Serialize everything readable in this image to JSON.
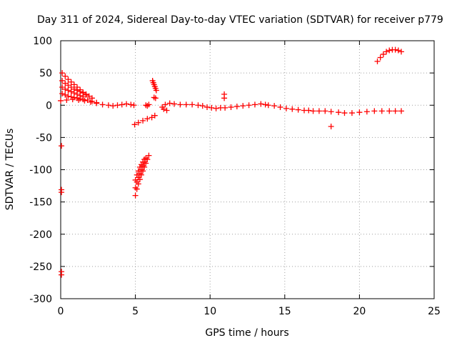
{
  "chart_data": {
    "type": "scatter",
    "title": "Day 311 of 2024, Sidereal Day-to-day VTEC variation (SDTVAR) for receiver p779",
    "xlabel": "GPS time / hours",
    "ylabel": "SDTVAR / TECUs",
    "xlim": [
      0,
      25
    ],
    "ylim": [
      -300,
      100
    ],
    "x_ticks": [
      0,
      5,
      10,
      15,
      20,
      25
    ],
    "y_ticks": [
      100,
      50,
      0,
      -50,
      -100,
      -150,
      -200,
      -250,
      -300
    ],
    "grid": true,
    "marker": "+",
    "color": "#ff0000",
    "series": [
      {
        "name": "top-cluster-upper",
        "points": [
          [
            0.1,
            50
          ],
          [
            0.3,
            45
          ],
          [
            0.5,
            40
          ],
          [
            0.7,
            36
          ],
          [
            0.9,
            32
          ],
          [
            1.1,
            28
          ],
          [
            1.3,
            24
          ],
          [
            1.5,
            20
          ],
          [
            1.7,
            17
          ],
          [
            1.9,
            14
          ],
          [
            2.1,
            11
          ]
        ]
      },
      {
        "name": "top-cluster-mid",
        "points": [
          [
            0.1,
            38
          ],
          [
            0.3,
            34
          ],
          [
            0.5,
            31
          ],
          [
            0.7,
            28
          ],
          [
            0.9,
            25
          ],
          [
            1.1,
            23
          ],
          [
            1.3,
            21
          ],
          [
            1.5,
            19
          ],
          [
            1.7,
            16
          ]
        ]
      },
      {
        "name": "top-cluster-low",
        "points": [
          [
            0.1,
            28
          ],
          [
            0.3,
            25
          ],
          [
            0.5,
            23
          ],
          [
            0.7,
            21
          ],
          [
            0.9,
            19
          ],
          [
            1.1,
            17
          ],
          [
            1.3,
            15
          ],
          [
            1.5,
            13
          ]
        ]
      },
      {
        "name": "top-cluster-base",
        "points": [
          [
            0.1,
            18
          ],
          [
            0.3,
            16
          ],
          [
            0.5,
            14
          ],
          [
            0.7,
            13
          ],
          [
            0.9,
            12
          ],
          [
            1.1,
            11
          ],
          [
            1.3,
            10
          ],
          [
            1.5,
            9
          ],
          [
            1.8,
            8
          ],
          [
            2.1,
            6
          ],
          [
            2.4,
            4
          ]
        ]
      },
      {
        "name": "trend-0-to-5",
        "points": [
          [
            0,
            7
          ],
          [
            0.4,
            8
          ],
          [
            0.8,
            9
          ],
          [
            1.2,
            8
          ],
          [
            1.6,
            7
          ],
          [
            2.0,
            5
          ],
          [
            2.4,
            3
          ],
          [
            2.8,
            1
          ],
          [
            3.2,
            0
          ],
          [
            3.5,
            -1
          ],
          [
            3.8,
            0
          ],
          [
            4.1,
            1
          ],
          [
            4.4,
            2
          ],
          [
            4.7,
            1
          ],
          [
            4.9,
            0
          ]
        ]
      },
      {
        "name": "rising-band-5h",
        "points": [
          [
            4.95,
            -30
          ],
          [
            5.2,
            -27
          ],
          [
            5.5,
            -24
          ],
          [
            5.8,
            -21
          ],
          [
            6.1,
            -19
          ],
          [
            6.3,
            -16
          ]
        ]
      },
      {
        "name": "deep-band-5h",
        "points": [
          [
            5.0,
            -140
          ],
          [
            5.1,
            -130
          ],
          [
            5.2,
            -122
          ],
          [
            5.3,
            -115
          ],
          [
            5.4,
            -108
          ],
          [
            5.5,
            -102
          ],
          [
            5.6,
            -96
          ],
          [
            5.7,
            -90
          ],
          [
            5.8,
            -84
          ],
          [
            5.9,
            -78
          ],
          [
            5.0,
            -128
          ],
          [
            5.1,
            -119
          ],
          [
            5.2,
            -112
          ],
          [
            5.3,
            -106
          ],
          [
            5.4,
            -100
          ],
          [
            5.5,
            -94
          ],
          [
            5.6,
            -88
          ],
          [
            5.7,
            -82
          ],
          [
            5.0,
            -116
          ],
          [
            5.1,
            -108
          ],
          [
            5.2,
            -102
          ],
          [
            5.3,
            -96
          ],
          [
            5.4,
            -92
          ],
          [
            5.5,
            -88
          ],
          [
            5.6,
            -84
          ]
        ]
      },
      {
        "name": "pre-6h-points",
        "points": [
          [
            5.7,
            0
          ],
          [
            5.8,
            -1
          ],
          [
            5.9,
            1
          ]
        ]
      },
      {
        "name": "spike-6h",
        "points": [
          [
            6.15,
            38
          ],
          [
            6.2,
            35
          ],
          [
            6.25,
            32
          ],
          [
            6.3,
            29
          ],
          [
            6.35,
            26
          ],
          [
            6.4,
            23
          ],
          [
            6.25,
            12
          ],
          [
            6.35,
            11
          ]
        ]
      },
      {
        "name": "trend-7-to-10",
        "points": [
          [
            6.8,
            -3
          ],
          [
            7.0,
            1
          ],
          [
            7.3,
            3
          ],
          [
            7.6,
            2
          ],
          [
            8.0,
            1
          ],
          [
            8.4,
            1
          ],
          [
            8.8,
            1
          ],
          [
            9.2,
            0
          ],
          [
            9.5,
            -1
          ],
          [
            6.9,
            -6
          ],
          [
            7.1,
            -8
          ]
        ]
      },
      {
        "name": "trend-10-to-13",
        "points": [
          [
            9.8,
            -3
          ],
          [
            10.1,
            -4
          ],
          [
            10.4,
            -5
          ],
          [
            10.7,
            -4
          ],
          [
            11.0,
            -4
          ],
          [
            11.4,
            -3
          ],
          [
            11.8,
            -2
          ],
          [
            12.2,
            -1
          ],
          [
            12.6,
            0
          ],
          [
            13.0,
            1
          ],
          [
            13.4,
            2
          ],
          [
            13.7,
            1
          ]
        ]
      },
      {
        "name": "spike-11h",
        "points": [
          [
            10.95,
            17
          ],
          [
            10.95,
            11
          ]
        ]
      },
      {
        "name": "trend-13-to-17",
        "points": [
          [
            13.9,
            0
          ],
          [
            14.3,
            -1
          ],
          [
            14.7,
            -3
          ],
          [
            15.1,
            -5
          ],
          [
            15.5,
            -6
          ],
          [
            15.9,
            -7
          ],
          [
            16.3,
            -8
          ],
          [
            16.6,
            -8
          ]
        ]
      },
      {
        "name": "trend-17-to-23",
        "points": [
          [
            16.9,
            -9
          ],
          [
            17.3,
            -9
          ],
          [
            17.7,
            -9
          ],
          [
            18.1,
            -10
          ],
          [
            18.6,
            -11
          ],
          [
            19.0,
            -12
          ],
          [
            19.5,
            -12
          ],
          [
            20.0,
            -11
          ],
          [
            20.5,
            -10
          ],
          [
            21.0,
            -9
          ],
          [
            21.5,
            -9
          ],
          [
            22.0,
            -9
          ],
          [
            22.4,
            -9
          ],
          [
            22.8,
            -9
          ]
        ]
      },
      {
        "name": "outlier-18h",
        "points": [
          [
            18.1,
            -33
          ]
        ]
      },
      {
        "name": "arc-21-to-23",
        "points": [
          [
            21.2,
            68
          ],
          [
            21.4,
            74
          ],
          [
            21.6,
            79
          ],
          [
            21.8,
            83
          ],
          [
            22.0,
            85
          ],
          [
            22.2,
            86
          ],
          [
            22.4,
            86
          ],
          [
            22.6,
            85
          ],
          [
            22.8,
            83
          ]
        ]
      },
      {
        "name": "outliers-0h",
        "points": [
          [
            0.05,
            -63
          ],
          [
            0.05,
            -131
          ],
          [
            0.05,
            -135
          ],
          [
            0.05,
            -258
          ],
          [
            0.05,
            -263
          ]
        ]
      }
    ]
  }
}
